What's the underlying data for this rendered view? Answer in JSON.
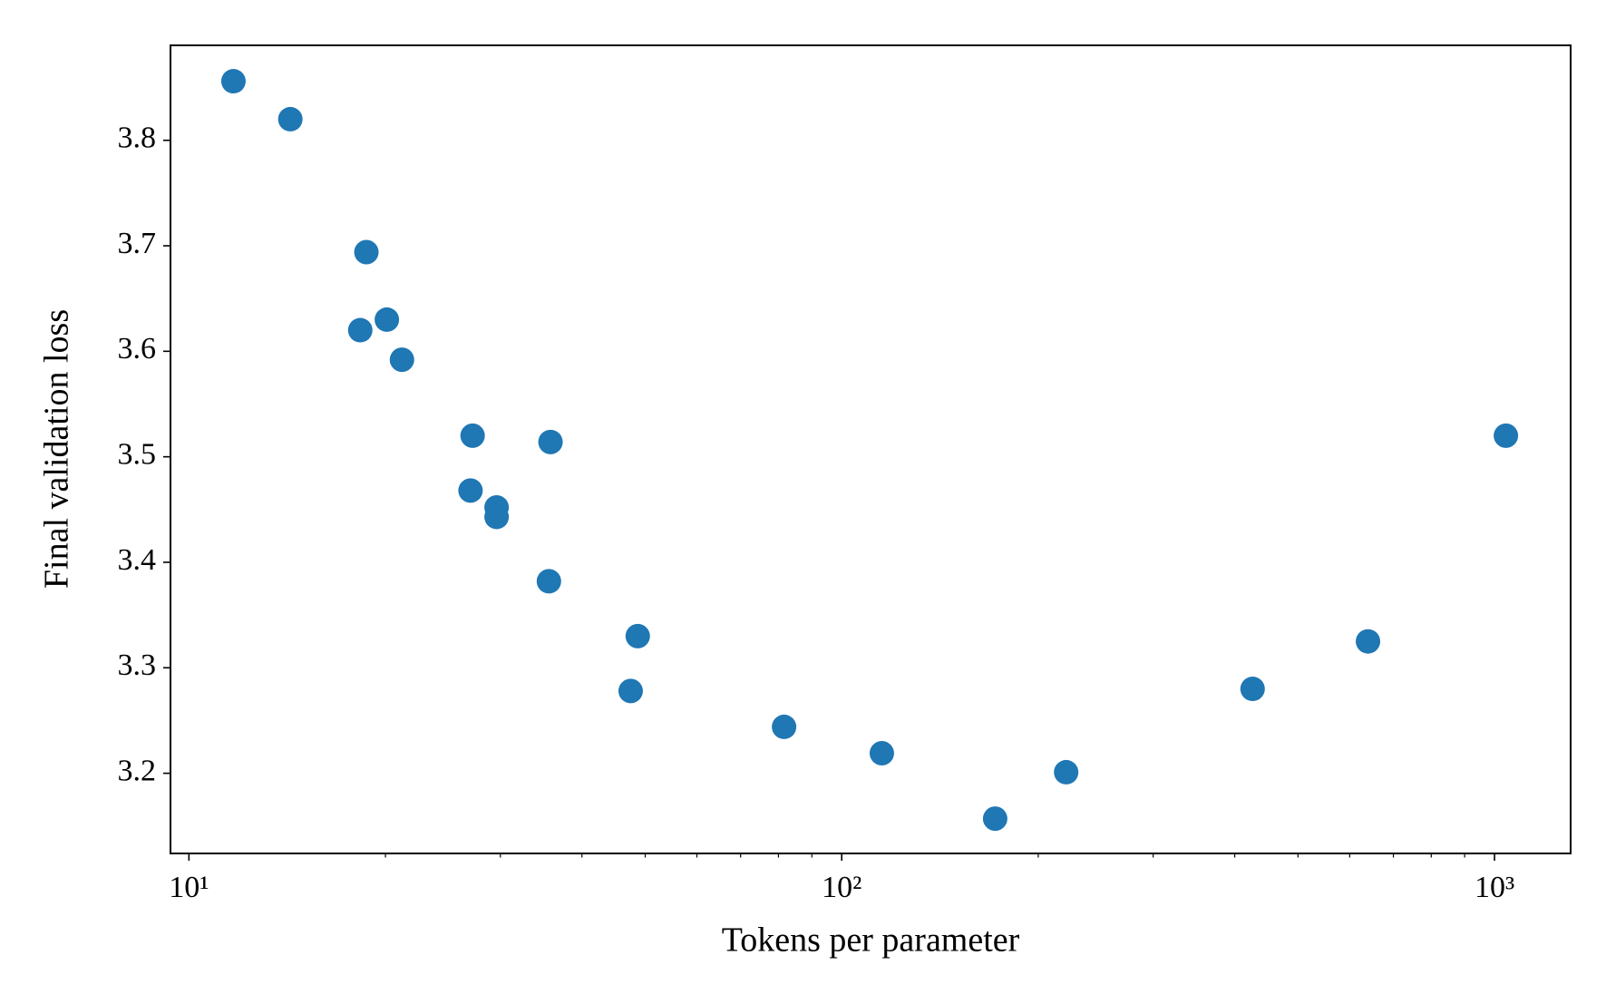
{
  "chart_data": {
    "type": "scatter",
    "xlabel": "Tokens per parameter",
    "ylabel": "Final validation loss",
    "x_scale": "log",
    "color": "#1f77b4",
    "x": [
      11.7,
      14.3,
      18.7,
      18.3,
      20.1,
      21.2,
      27.2,
      35.8,
      27.0,
      29.6,
      29.6,
      35.6,
      48.7,
      47.5,
      81.6,
      115.2,
      171.8,
      220.7,
      426,
      640,
      1041
    ],
    "values": [
      3.856,
      3.82,
      3.694,
      3.62,
      3.63,
      3.592,
      3.52,
      3.514,
      3.468,
      3.452,
      3.443,
      3.382,
      3.33,
      3.278,
      3.244,
      3.219,
      3.157,
      3.201,
      3.28,
      3.325,
      3.52
    ],
    "xlim": [
      9.37,
      1308
    ],
    "ylim": [
      3.124,
      3.89
    ],
    "xticks": [
      {
        "value": 10,
        "label": "10¹"
      },
      {
        "value": 100,
        "label": "10²"
      },
      {
        "value": 1000,
        "label": "10³"
      }
    ],
    "xminorticks": [
      20,
      30,
      40,
      50,
      60,
      70,
      80,
      90,
      200,
      300,
      400,
      500,
      600,
      700,
      800,
      900
    ],
    "yticks": [
      3.2,
      3.3,
      3.4,
      3.5,
      3.6,
      3.7,
      3.8
    ]
  }
}
